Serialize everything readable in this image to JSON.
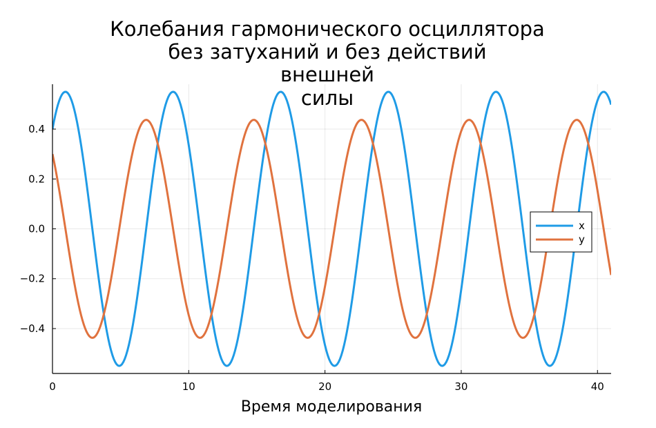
{
  "chart_data": {
    "type": "line",
    "title_lines": [
      "Колебания гармонического осциллятора",
      "без затуханий и без действий",
      "внешней",
      "силы"
    ],
    "xlabel": "Время моделирования",
    "ylabel": "",
    "xlim": [
      0,
      41
    ],
    "ylim": [
      -0.58,
      0.58
    ],
    "xticks": [
      0,
      10,
      20,
      30,
      40
    ],
    "xtick_labels": [
      "0",
      "10",
      "20",
      "30",
      "40"
    ],
    "yticks": [
      -0.4,
      -0.2,
      0.0,
      0.2,
      0.4
    ],
    "ytick_labels": [
      "−0.4",
      "−0.2",
      "0.0",
      "0.2",
      "0.4"
    ],
    "grid": true,
    "legend_position": "right",
    "period": 7.9,
    "sample_step": 0.1,
    "series": [
      {
        "name": "x",
        "color": "#1f9be6",
        "amplitude": 0.55,
        "x_at_0": 0.4,
        "y_at_0": 0.3
      },
      {
        "name": "y",
        "color": "#e0723e",
        "amplitude": 0.44,
        "x_at_0": 0.4,
        "y_at_0": 0.3
      }
    ]
  }
}
